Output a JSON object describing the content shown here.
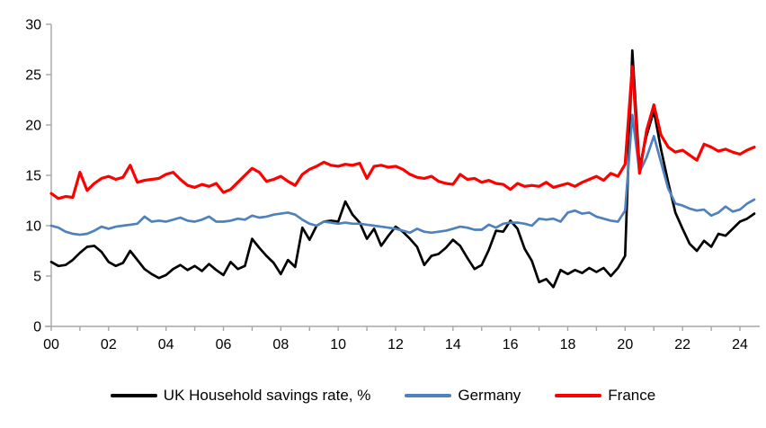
{
  "chart_data": {
    "type": "line",
    "title": "",
    "frequency": "quarterly",
    "x_range": [
      "2000Q1",
      "2024Q3"
    ],
    "x_tick_labels": [
      "00",
      "02",
      "04",
      "06",
      "08",
      "10",
      "12",
      "14",
      "16",
      "18",
      "20",
      "22",
      "24"
    ],
    "y_ticks": [
      0,
      5,
      10,
      15,
      20,
      25,
      30
    ],
    "ylim": [
      0,
      30
    ],
    "grid": false,
    "legend_position": "bottom",
    "axis_color": "#A6A6A6",
    "series": [
      {
        "name": "UK Household savings rate, %",
        "color": "#000000",
        "values": [
          6.4,
          6.0,
          6.1,
          6.6,
          7.3,
          7.9,
          8.0,
          7.4,
          6.4,
          6.0,
          6.3,
          7.5,
          6.6,
          5.7,
          5.2,
          4.8,
          5.1,
          5.7,
          6.1,
          5.6,
          6.0,
          5.5,
          6.2,
          5.6,
          5.1,
          6.4,
          5.7,
          6.0,
          8.7,
          7.8,
          7.0,
          6.3,
          5.2,
          6.6,
          5.9,
          9.8,
          8.6,
          10.0,
          10.4,
          10.5,
          10.4,
          12.4,
          11.1,
          10.3,
          8.7,
          9.7,
          8.0,
          9.0,
          9.9,
          9.4,
          8.7,
          7.9,
          6.1,
          7.0,
          7.2,
          7.8,
          8.6,
          8.0,
          6.8,
          5.7,
          6.1,
          7.6,
          9.5,
          9.4,
          10.5,
          9.7,
          7.7,
          6.5,
          4.4,
          4.7,
          3.9,
          5.6,
          5.2,
          5.6,
          5.3,
          5.8,
          5.4,
          5.8,
          5.0,
          5.8,
          7.0,
          27.4,
          15.8,
          19.0,
          21.4,
          17.6,
          14.3,
          11.3,
          9.7,
          8.2,
          7.5,
          8.5,
          7.9,
          9.2,
          9.0,
          9.7,
          10.4,
          10.7,
          11.2
        ]
      },
      {
        "name": "Germany",
        "color": "#4F81BD",
        "values": [
          10.0,
          9.8,
          9.4,
          9.2,
          9.1,
          9.2,
          9.5,
          9.9,
          9.7,
          9.9,
          10.0,
          10.1,
          10.2,
          10.9,
          10.4,
          10.5,
          10.4,
          10.6,
          10.8,
          10.5,
          10.4,
          10.6,
          10.9,
          10.4,
          10.4,
          10.5,
          10.7,
          10.6,
          11.0,
          10.8,
          10.9,
          11.1,
          11.2,
          11.3,
          11.1,
          10.6,
          10.2,
          10.0,
          10.4,
          10.3,
          10.2,
          10.3,
          10.2,
          10.2,
          10.1,
          10.0,
          9.9,
          9.8,
          9.7,
          9.5,
          9.3,
          9.7,
          9.4,
          9.3,
          9.4,
          9.5,
          9.7,
          9.9,
          9.8,
          9.6,
          9.6,
          10.1,
          9.8,
          10.2,
          10.3,
          10.3,
          10.2,
          10.0,
          10.7,
          10.6,
          10.7,
          10.4,
          11.3,
          11.5,
          11.2,
          11.3,
          10.9,
          10.7,
          10.5,
          10.4,
          11.5,
          21.0,
          15.3,
          16.8,
          18.9,
          16.3,
          13.7,
          12.2,
          12.0,
          11.7,
          11.5,
          11.6,
          11.0,
          11.3,
          11.9,
          11.4,
          11.6,
          12.2,
          12.6
        ]
      },
      {
        "name": "France",
        "color": "#FF0000",
        "values": [
          13.2,
          12.7,
          12.9,
          12.8,
          15.3,
          13.5,
          14.2,
          14.7,
          14.9,
          14.6,
          14.8,
          16.0,
          14.3,
          14.5,
          14.6,
          14.7,
          15.1,
          15.3,
          14.6,
          14.0,
          13.8,
          14.1,
          13.9,
          14.2,
          13.3,
          13.6,
          14.3,
          15.0,
          15.7,
          15.3,
          14.4,
          14.6,
          14.9,
          14.4,
          14.0,
          15.1,
          15.6,
          15.9,
          16.3,
          16.0,
          15.9,
          16.1,
          16.0,
          16.2,
          14.7,
          15.9,
          16.0,
          15.8,
          15.9,
          15.6,
          15.1,
          14.8,
          14.7,
          14.9,
          14.4,
          14.2,
          14.1,
          15.1,
          14.6,
          14.7,
          14.3,
          14.5,
          14.2,
          14.1,
          13.6,
          14.2,
          13.9,
          14.0,
          13.9,
          14.3,
          13.8,
          14.0,
          14.2,
          13.9,
          14.3,
          14.6,
          14.9,
          14.5,
          15.2,
          14.9,
          16.1,
          25.8,
          15.2,
          19.5,
          22.0,
          19.0,
          17.8,
          17.3,
          17.5,
          17.0,
          16.5,
          18.1,
          17.8,
          17.4,
          17.6,
          17.3,
          17.1,
          17.5,
          17.8
        ]
      }
    ]
  }
}
